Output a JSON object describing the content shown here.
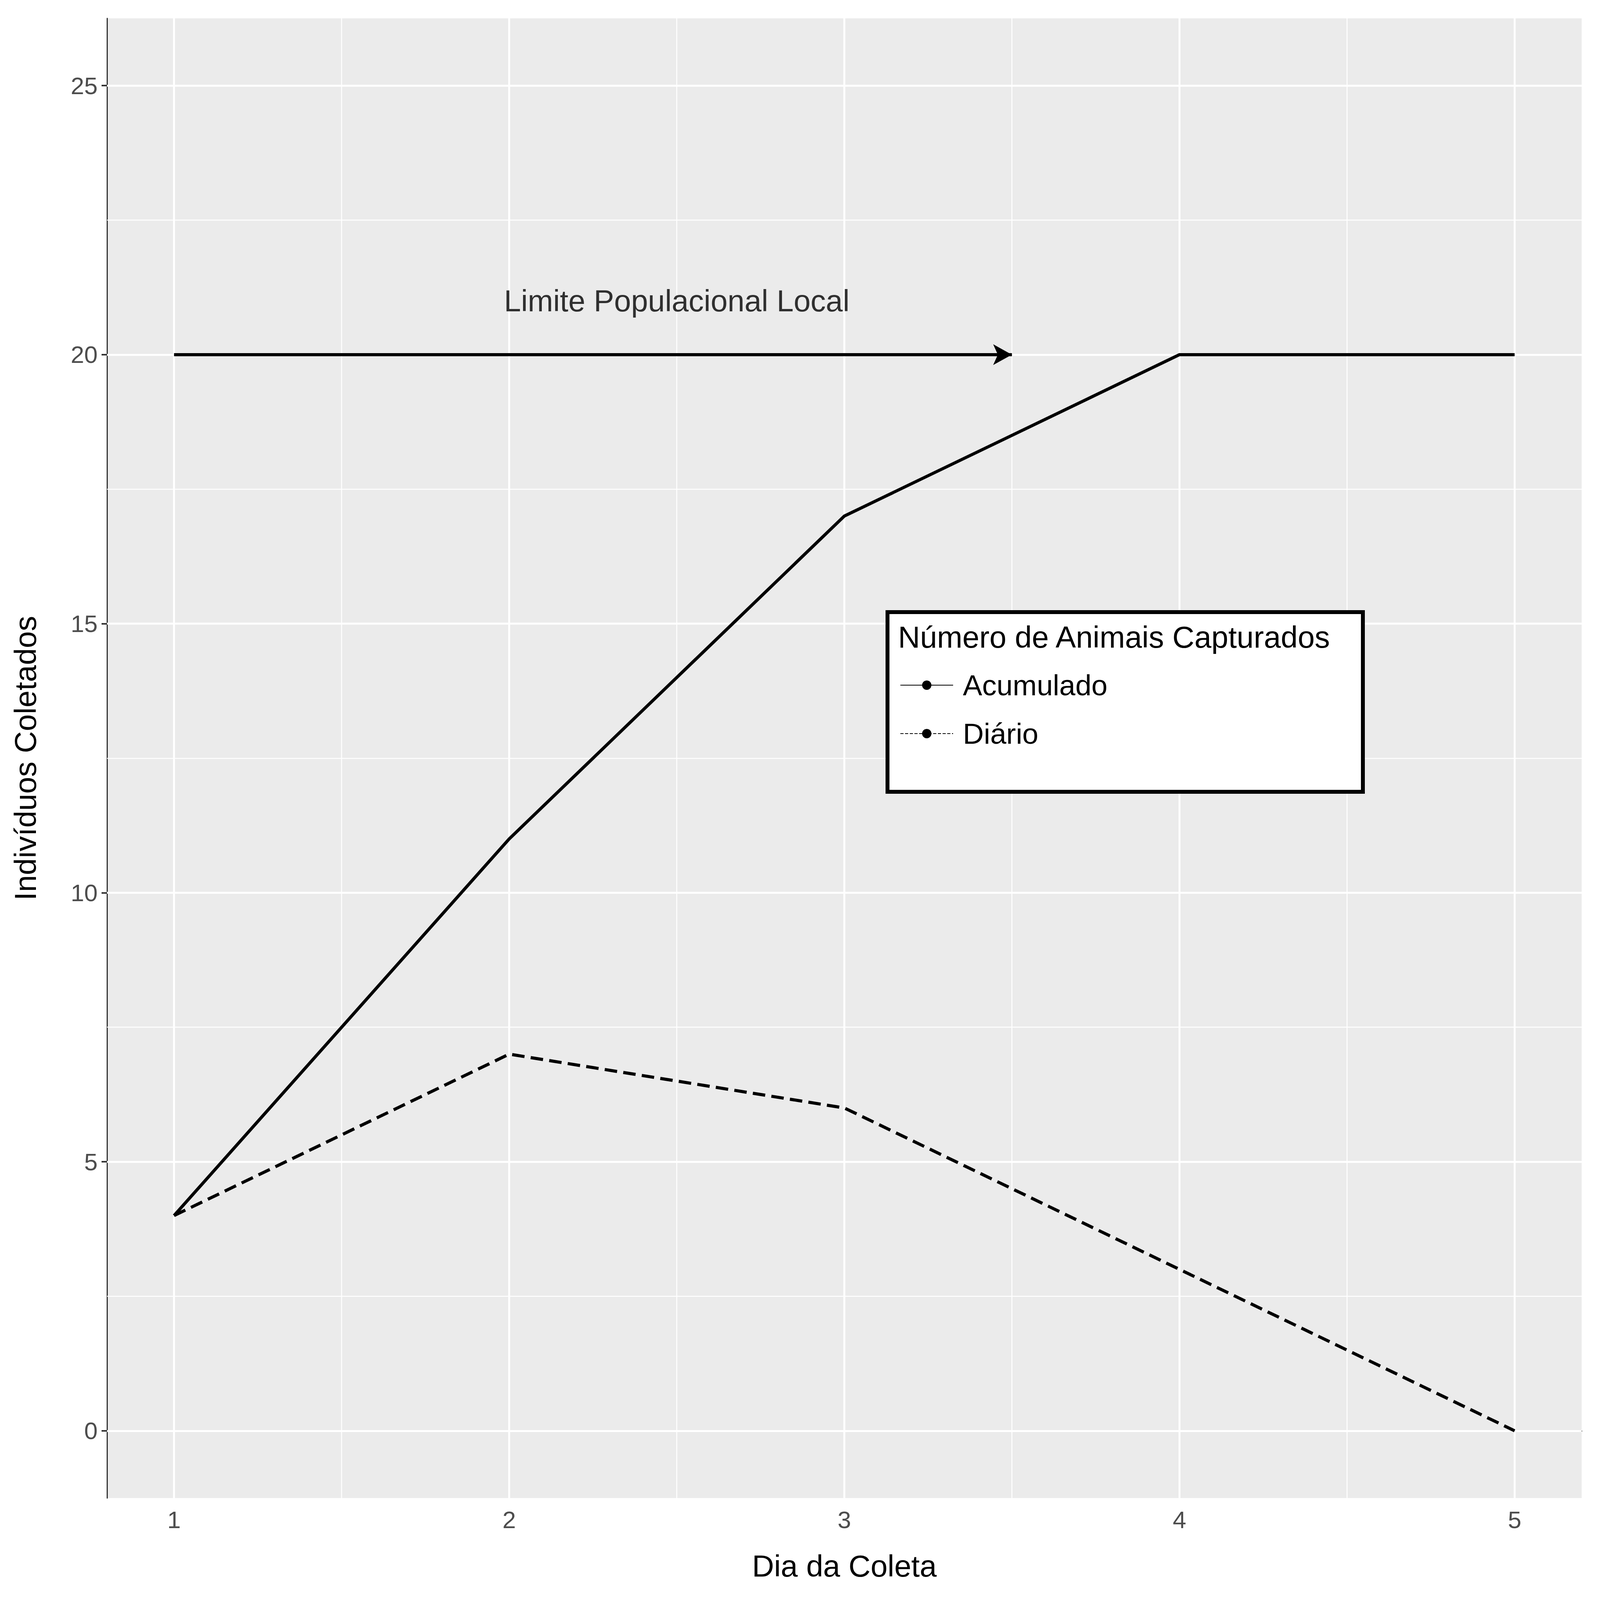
{
  "chart_data": {
    "type": "line",
    "xlabel": "Dia da Coleta",
    "ylabel": "Indivíduos Coletados",
    "x": [
      1,
      2,
      3,
      4,
      5
    ],
    "series": [
      {
        "name": "Acumulado",
        "color": "#000000",
        "line_style": "solid",
        "values": [
          4,
          11,
          17,
          20,
          20
        ]
      },
      {
        "name": "Diário",
        "color": "#000000",
        "line_style": "dashed",
        "values": [
          4,
          7,
          6,
          3,
          0
        ]
      }
    ],
    "xlim": [
      0.8,
      5.2
    ],
    "ylim": [
      -1.25,
      26.25
    ],
    "xticks": [
      1,
      2,
      3,
      4,
      5
    ],
    "yticks": [
      0,
      5,
      10,
      15,
      20,
      25
    ],
    "grid": true,
    "legend": "right",
    "legend_title": "Número de Animais Capturados",
    "annotations": [
      {
        "type": "text",
        "text": "Limite Populacional Local",
        "x": 2.5,
        "y": 21
      },
      {
        "type": "arrow",
        "x_start": 1,
        "x_end": 3.5,
        "y": 20
      }
    ]
  }
}
